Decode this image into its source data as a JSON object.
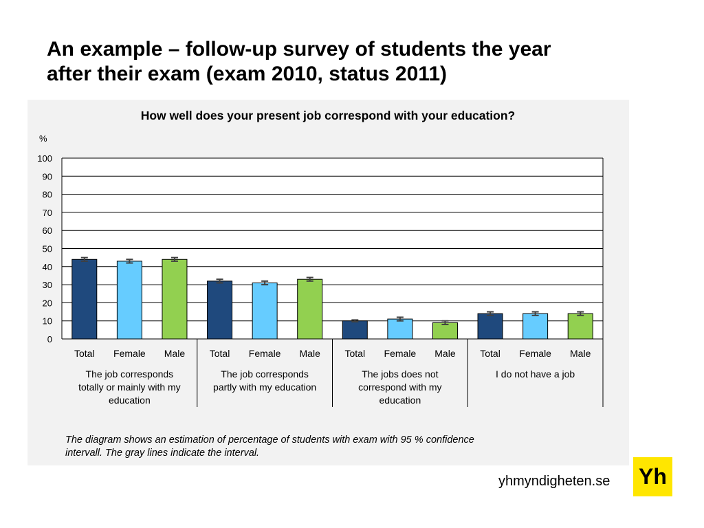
{
  "slide": {
    "title_lines": [
      "An example – follow-up survey of students the year",
      "after their exam (exam 2010, status 2011)"
    ],
    "note_lines": [
      "The diagram shows an estimation of percentage of students with exam with 95 % confidence",
      "intervall. The gray lines indicate the interval."
    ],
    "footer_site": "yhmyndigheten.se",
    "logo_text": "Yh"
  },
  "chart_data": {
    "type": "bar",
    "title": "How well does your present job correspond with your education?",
    "ylabel": "%",
    "ylim": [
      0,
      100
    ],
    "yticks": [
      0,
      10,
      20,
      30,
      40,
      50,
      60,
      70,
      80,
      90,
      100
    ],
    "grid": true,
    "legend": "none",
    "groups": [
      {
        "label": [
          "The job corresponds",
          "totally or mainly with my",
          "education"
        ],
        "bars": [
          {
            "category": "Total",
            "value": 44,
            "ci": [
              43,
              45
            ],
            "color": "#1f497d"
          },
          {
            "category": "Female",
            "value": 43,
            "ci": [
              42,
              44
            ],
            "color": "#66ccff"
          },
          {
            "category": "Male",
            "value": 44,
            "ci": [
              43,
              45
            ],
            "color": "#92d050"
          }
        ]
      },
      {
        "label": [
          "The job corresponds",
          "partly with my education"
        ],
        "bars": [
          {
            "category": "Total",
            "value": 32,
            "ci": [
              31,
              33
            ],
            "color": "#1f497d"
          },
          {
            "category": "Female",
            "value": 31,
            "ci": [
              30,
              32
            ],
            "color": "#66ccff"
          },
          {
            "category": "Male",
            "value": 33,
            "ci": [
              32,
              34
            ],
            "color": "#92d050"
          }
        ]
      },
      {
        "label": [
          "The jobs does not",
          "correspond with my",
          "education"
        ],
        "bars": [
          {
            "category": "Total",
            "value": 10,
            "ci": [
              9.5,
              10.5
            ],
            "color": "#1f497d"
          },
          {
            "category": "Female",
            "value": 11,
            "ci": [
              10,
              12
            ],
            "color": "#66ccff"
          },
          {
            "category": "Male",
            "value": 9,
            "ci": [
              8,
              10
            ],
            "color": "#92d050"
          }
        ]
      },
      {
        "label": [
          "I do not have a job"
        ],
        "bars": [
          {
            "category": "Total",
            "value": 14,
            "ci": [
              13,
              15
            ],
            "color": "#1f497d"
          },
          {
            "category": "Female",
            "value": 14,
            "ci": [
              13,
              15
            ],
            "color": "#66ccff"
          },
          {
            "category": "Male",
            "value": 14,
            "ci": [
              13,
              15
            ],
            "color": "#92d050"
          }
        ]
      }
    ]
  }
}
